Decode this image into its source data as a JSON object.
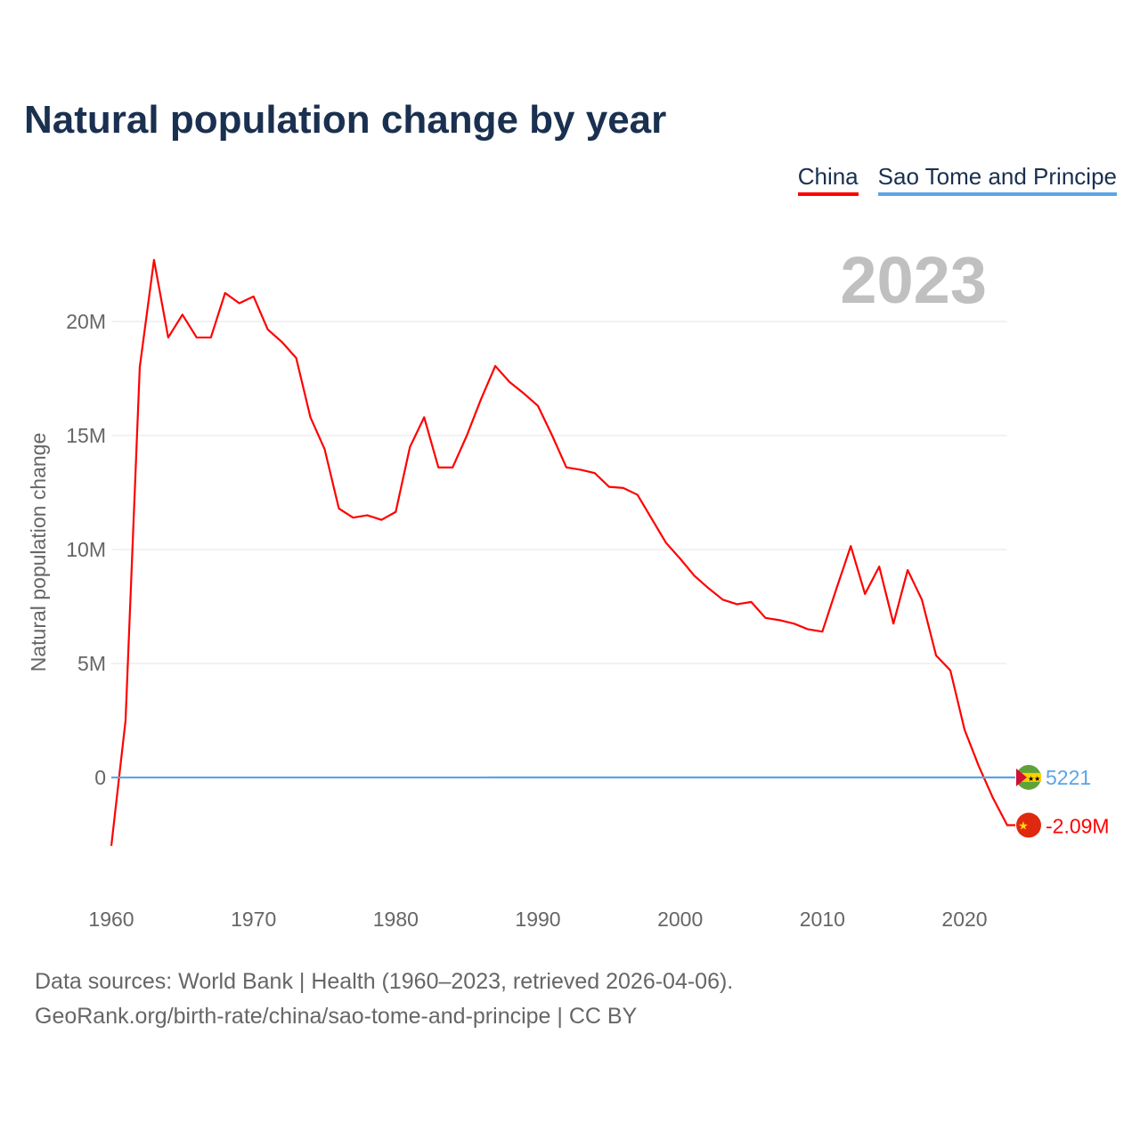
{
  "title": "Natural population change by year",
  "legend": [
    {
      "label": "China",
      "color": "#ff0000"
    },
    {
      "label": "Sao Tome and Principe",
      "color": "#5aa5e8"
    }
  ],
  "year_label": "2023",
  "source_line1": "Data sources: World Bank | Health (1960–2023, retrieved 2026-04-06).",
  "source_line2": "GeoRank.org/birth-rate/china/sao-tome-and-principe | CC BY",
  "chart_data": {
    "type": "line",
    "title": "Natural population change by year",
    "xlabel": "",
    "ylabel": "Natural population change",
    "xlim": [
      1960,
      2023
    ],
    "ylim": [
      -4500000,
      23500000
    ],
    "x_ticks": [
      1960,
      1970,
      1980,
      1990,
      2000,
      2010,
      2020
    ],
    "y_ticks": [
      0,
      5000000,
      10000000,
      15000000,
      20000000
    ],
    "y_tick_labels": [
      "0",
      "5M",
      "10M",
      "15M",
      "20M"
    ],
    "grid": true,
    "legend_position": "top-right",
    "x": [
      1960,
      1961,
      1962,
      1963,
      1964,
      1965,
      1966,
      1967,
      1968,
      1969,
      1970,
      1971,
      1972,
      1973,
      1974,
      1975,
      1976,
      1977,
      1978,
      1979,
      1980,
      1981,
      1982,
      1983,
      1984,
      1985,
      1986,
      1987,
      1988,
      1989,
      1990,
      1991,
      1992,
      1993,
      1994,
      1995,
      1996,
      1997,
      1998,
      1999,
      2000,
      2001,
      2002,
      2003,
      2004,
      2005,
      2006,
      2007,
      2008,
      2009,
      2010,
      2011,
      2012,
      2013,
      2014,
      2015,
      2016,
      2017,
      2018,
      2019,
      2020,
      2021,
      2022,
      2023
    ],
    "series": [
      {
        "name": "China",
        "color": "#ff0000",
        "end_label": "-2.09M",
        "values": [
          -3000000,
          2500000,
          18000000,
          22700000,
          19300000,
          20300000,
          19300000,
          19300000,
          21250000,
          20800000,
          21100000,
          19650000,
          19100000,
          18400000,
          15800000,
          14400000,
          11800000,
          11400000,
          11500000,
          11300000,
          11650000,
          14500000,
          15800000,
          13600000,
          13600000,
          15000000,
          16600000,
          18050000,
          17350000,
          16850000,
          16300000,
          15000000,
          13600000,
          13500000,
          13350000,
          12750000,
          12700000,
          12400000,
          11350000,
          10300000,
          9600000,
          8850000,
          8300000,
          7800000,
          7600000,
          7700000,
          7000000,
          6900000,
          6750000,
          6500000,
          6400000,
          8300000,
          10150000,
          8050000,
          9250000,
          6750000,
          9100000,
          7800000,
          5350000,
          4700000,
          2100000,
          500000,
          -900000,
          -2090000
        ]
      },
      {
        "name": "Sao Tome and Principe",
        "color": "#5aa5e8",
        "end_label": "5221",
        "values": [
          1900,
          2000,
          2100,
          2200,
          2200,
          2300,
          2300,
          2400,
          2400,
          2500,
          2500,
          2600,
          2600,
          2700,
          2700,
          2800,
          2900,
          2900,
          3000,
          3000,
          3100,
          3200,
          3200,
          3300,
          3300,
          3400,
          3400,
          3500,
          3500,
          3600,
          3600,
          3700,
          3700,
          3800,
          3800,
          3900,
          3900,
          4000,
          4000,
          4100,
          4100,
          4200,
          4200,
          4300,
          4300,
          4400,
          4400,
          4500,
          4500,
          4600,
          4600,
          4700,
          4700,
          4800,
          4800,
          4900,
          4900,
          5000,
          5000,
          5100,
          5100,
          5150,
          5200,
          5221
        ]
      }
    ]
  }
}
